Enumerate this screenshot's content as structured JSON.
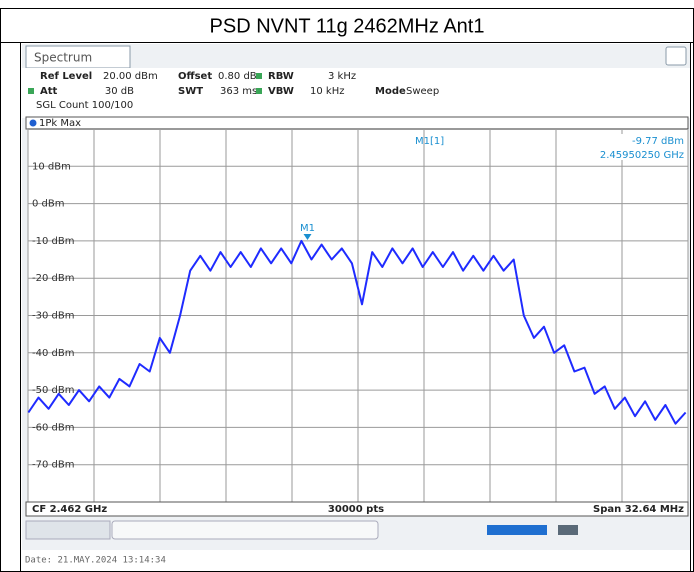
{
  "title": "PSD NVNT 11g 2462MHz Ant1",
  "header": {
    "tab": "Spectrum",
    "ref_level_label": "Ref Level",
    "ref_level": "20.00 dBm",
    "offset_label": "Offset",
    "offset": "0.80 dB",
    "rbw_label": "RBW",
    "rbw": "3 kHz",
    "att_label": "Att",
    "att": "30 dB",
    "swt_label": "SWT",
    "swt": "363 ms",
    "vbw_label": "VBW",
    "vbw": "10 kHz",
    "mode_label": "Mode",
    "mode": "Sweep",
    "count": "SGL Count 100/100",
    "trace_label": "1Pk Max"
  },
  "chart_data": {
    "type": "line",
    "xlim": [
      2445.68,
      2478.32
    ],
    "ylim": [
      -80,
      20
    ],
    "xticks": [
      2445.68,
      2448.944,
      2452.208,
      2455.472,
      2458.736,
      2462,
      2465.264,
      2468.528,
      2471.792,
      2475.056,
      2478.32
    ],
    "yticks": [
      {
        "value": 10,
        "label": "10 dBm"
      },
      {
        "value": 0,
        "label": "0 dBm"
      },
      {
        "value": -10,
        "label": "-10 dBm"
      },
      {
        "value": -20,
        "label": "-20 dBm"
      },
      {
        "value": -30,
        "label": "-30 dBm"
      },
      {
        "value": -40,
        "label": "-40 dBm"
      },
      {
        "value": -50,
        "label": "-50 dBm"
      },
      {
        "value": -60,
        "label": "-60 dBm"
      },
      {
        "value": -70,
        "label": "-70 dBm"
      }
    ],
    "grid": true,
    "x": [
      2445.7,
      2446.2,
      2446.7,
      2447.2,
      2447.7,
      2448.2,
      2448.7,
      2449.2,
      2449.7,
      2450.2,
      2450.7,
      2451.2,
      2451.7,
      2452.2,
      2452.7,
      2453.2,
      2453.7,
      2454.2,
      2454.7,
      2455.2,
      2455.7,
      2456.2,
      2456.7,
      2457.2,
      2457.7,
      2458.2,
      2458.7,
      2459.2,
      2459.7,
      2460.2,
      2460.7,
      2461.2,
      2461.7,
      2462.2,
      2462.7,
      2463.2,
      2463.7,
      2464.2,
      2464.7,
      2465.2,
      2465.7,
      2466.2,
      2466.7,
      2467.2,
      2467.7,
      2468.2,
      2468.7,
      2469.2,
      2469.7,
      2470.2,
      2470.7,
      2471.2,
      2471.7,
      2472.2,
      2472.7,
      2473.2,
      2473.7,
      2474.2,
      2474.7,
      2475.2,
      2475.7,
      2476.2,
      2476.7,
      2477.2,
      2477.7,
      2478.2
    ],
    "series": [
      {
        "color": "#1f2bff",
        "values": [
          -56,
          -52,
          -55,
          -51,
          -54,
          -50,
          -53,
          -49,
          -52,
          -47,
          -49,
          -43,
          -45,
          -36,
          -40,
          -30,
          -18,
          -14,
          -18,
          -13,
          -17,
          -13,
          -17,
          -12,
          -16,
          -12,
          -16,
          -10,
          -15,
          -11,
          -15,
          -12,
          -16,
          -27,
          -13,
          -17,
          -12,
          -16,
          -12,
          -17,
          -13,
          -17,
          -13,
          -18,
          -14,
          -18,
          -14,
          -18,
          -15,
          -30,
          -36,
          -33,
          -40,
          -38,
          -45,
          -44,
          -51,
          -49,
          -55,
          -52,
          -57,
          -53,
          -58,
          -54,
          -59,
          -56
        ]
      }
    ],
    "marker": {
      "name": "M1",
      "readout": "M1[1]",
      "x": 2459.5025,
      "y": -9.77,
      "y_label": "-9.77 dBm",
      "x_label": "2.45950250 GHz"
    },
    "center_label": "CF 2.462 GHz",
    "points_label": "30000 pts",
    "span_label": "Span 32.64 MHz"
  },
  "date": "Date: 21.MAY.2024  13:14:34"
}
